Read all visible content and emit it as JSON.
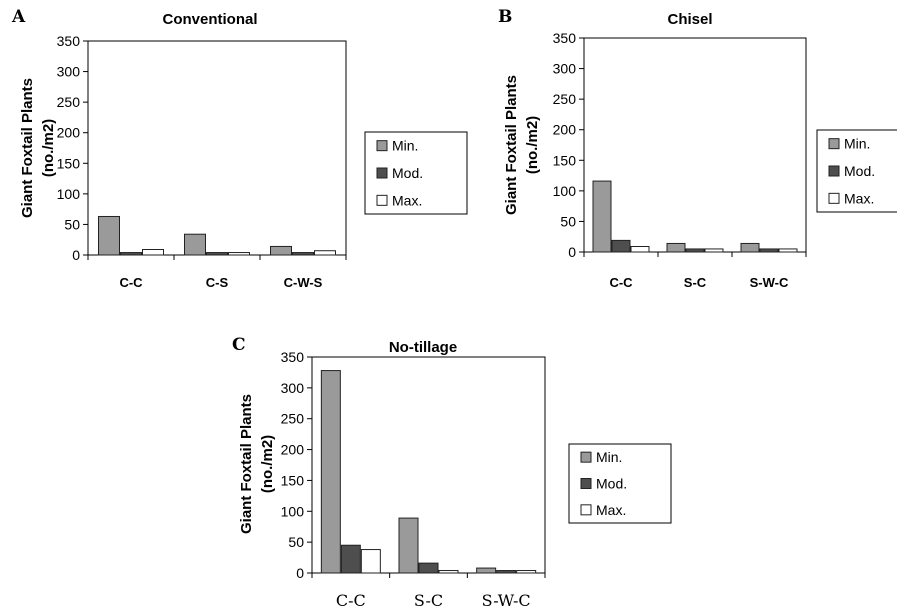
{
  "colors": {
    "min": "#9a9a9a",
    "mod": "#4e4e4e",
    "max": "#ffffff",
    "stroke": "#222222"
  },
  "chart_data": [
    {
      "type": "bar",
      "panel_label": "A",
      "title": "Conventional",
      "ylabel_line1": "Giant Foxtail Plants",
      "ylabel_line2": "(no./m2)",
      "ylim": [
        0,
        350
      ],
      "yticks": [
        0,
        50,
        100,
        150,
        200,
        250,
        300,
        350
      ],
      "categories": [
        "C-C",
        "C-S",
        "C-W-S"
      ],
      "series": [
        {
          "name": "Min.",
          "values": [
            63,
            34,
            14
          ]
        },
        {
          "name": "Mod.",
          "values": [
            4,
            4,
            4
          ]
        },
        {
          "name": "Max.",
          "values": [
            9,
            4,
            7
          ]
        }
      ],
      "legend": "right",
      "grid": false
    },
    {
      "type": "bar",
      "panel_label": "B",
      "title": "Chisel",
      "ylabel_line1": "Giant Foxtail Plants",
      "ylabel_line2": "(no./m2)",
      "ylim": [
        0,
        350
      ],
      "yticks": [
        0,
        50,
        100,
        150,
        200,
        250,
        300,
        350
      ],
      "categories": [
        "C-C",
        "S-C",
        "S-W-C"
      ],
      "series": [
        {
          "name": "Min.",
          "values": [
            116,
            14,
            14
          ]
        },
        {
          "name": "Mod.",
          "values": [
            19,
            5,
            5
          ]
        },
        {
          "name": "Max.",
          "values": [
            9,
            5,
            5
          ]
        }
      ],
      "legend": "right",
      "grid": false
    },
    {
      "type": "bar",
      "panel_label": "C",
      "title": "No-tillage",
      "ylabel_line1": "Giant Foxtail Plants",
      "ylabel_line2": "(no./m2)",
      "ylim": [
        0,
        350
      ],
      "yticks": [
        0,
        50,
        100,
        150,
        200,
        250,
        300,
        350
      ],
      "categories": [
        "C-C",
        "S-C",
        "S-W-C"
      ],
      "series": [
        {
          "name": "Min.",
          "values": [
            328,
            89,
            8
          ]
        },
        {
          "name": "Mod.",
          "values": [
            45,
            16,
            4
          ]
        },
        {
          "name": "Max.",
          "values": [
            38,
            4,
            4
          ]
        }
      ],
      "legend": "right",
      "grid": false
    }
  ]
}
